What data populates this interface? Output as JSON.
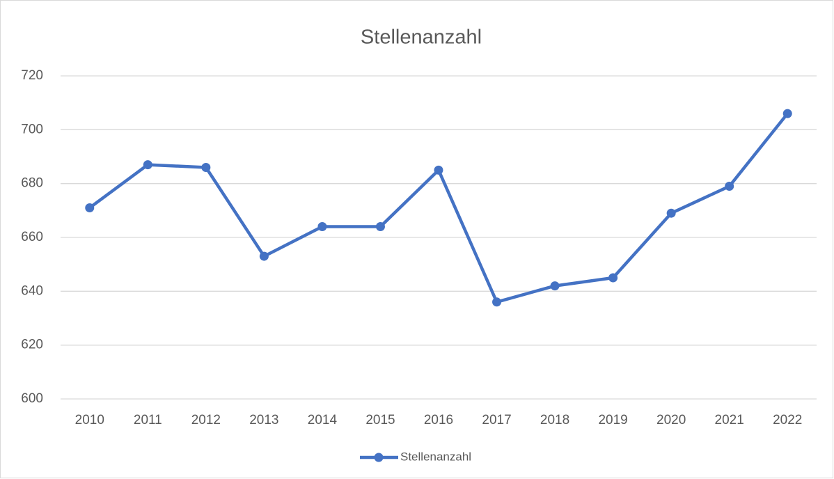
{
  "chart_data": {
    "type": "line",
    "title": "Stellenanzahl",
    "categories": [
      "2010",
      "2011",
      "2012",
      "2013",
      "2014",
      "2015",
      "2016",
      "2017",
      "2018",
      "2019",
      "2020",
      "2021",
      "2022"
    ],
    "series": [
      {
        "name": "Stellenanzahl",
        "color": "#4472c4",
        "values": [
          671,
          687,
          686,
          653,
          664,
          664,
          685,
          636,
          642,
          645,
          669,
          679,
          706
        ]
      }
    ],
    "ylim": [
      600,
      720
    ],
    "yticks": [
      600,
      620,
      640,
      660,
      680,
      700,
      720
    ],
    "grid": true,
    "legend": "bottom"
  }
}
